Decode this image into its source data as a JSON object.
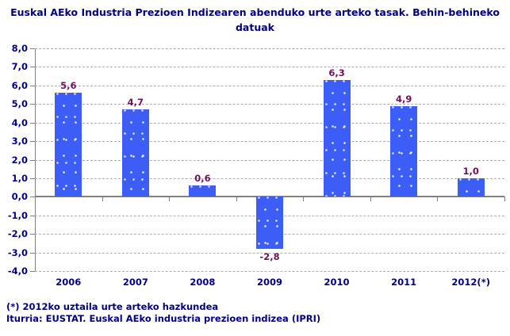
{
  "title": "Euskal AEko Industria Prezioen Indizearen abenduko urte arteko tasak.  Behin-behineko datuak",
  "footnotes": {
    "asterisk": "(*) 2012ko uztaila urte arteko hazkundea",
    "source": "Iturria: EUSTAT. Euskal AEko industria prezioen indizea (IPRI)"
  },
  "colors": {
    "title_text": "#000080",
    "axis_label_text": "#000080",
    "bar_fill": "#3D5EF6",
    "bar_value_label": "#71105E",
    "gridline": "#ADADAD",
    "axis_line": "#808080",
    "background": "#FFFFFF"
  },
  "chart_data": {
    "type": "bar",
    "title": "Euskal AEko Industria Prezioen Indizearen abenduko urte arteko tasak. Behin-behineko datuak",
    "categories": [
      "2006",
      "2007",
      "2008",
      "2009",
      "2010",
      "2011",
      "2012(*)"
    ],
    "values": [
      5.6,
      4.7,
      0.6,
      -2.8,
      6.3,
      4.9,
      1.0
    ],
    "value_labels": [
      "5,6",
      "4,7",
      "0,6",
      "-2,8",
      "6,3",
      "4,9",
      "1,0"
    ],
    "y_tick_labels": [
      "8,0",
      "7,0",
      "6,0",
      "5,0",
      "4,0",
      "3,0",
      "2,0",
      "1,0",
      "0,0",
      "-1,0",
      "-2,0",
      "-3,0",
      "-4,0"
    ],
    "y_step": 1,
    "ylim": [
      -4,
      8
    ],
    "xlabel": "",
    "ylabel": "",
    "grid": "horizontal dashed, solid zero line",
    "legend": "none",
    "bar_texture": "white speckle dots"
  }
}
